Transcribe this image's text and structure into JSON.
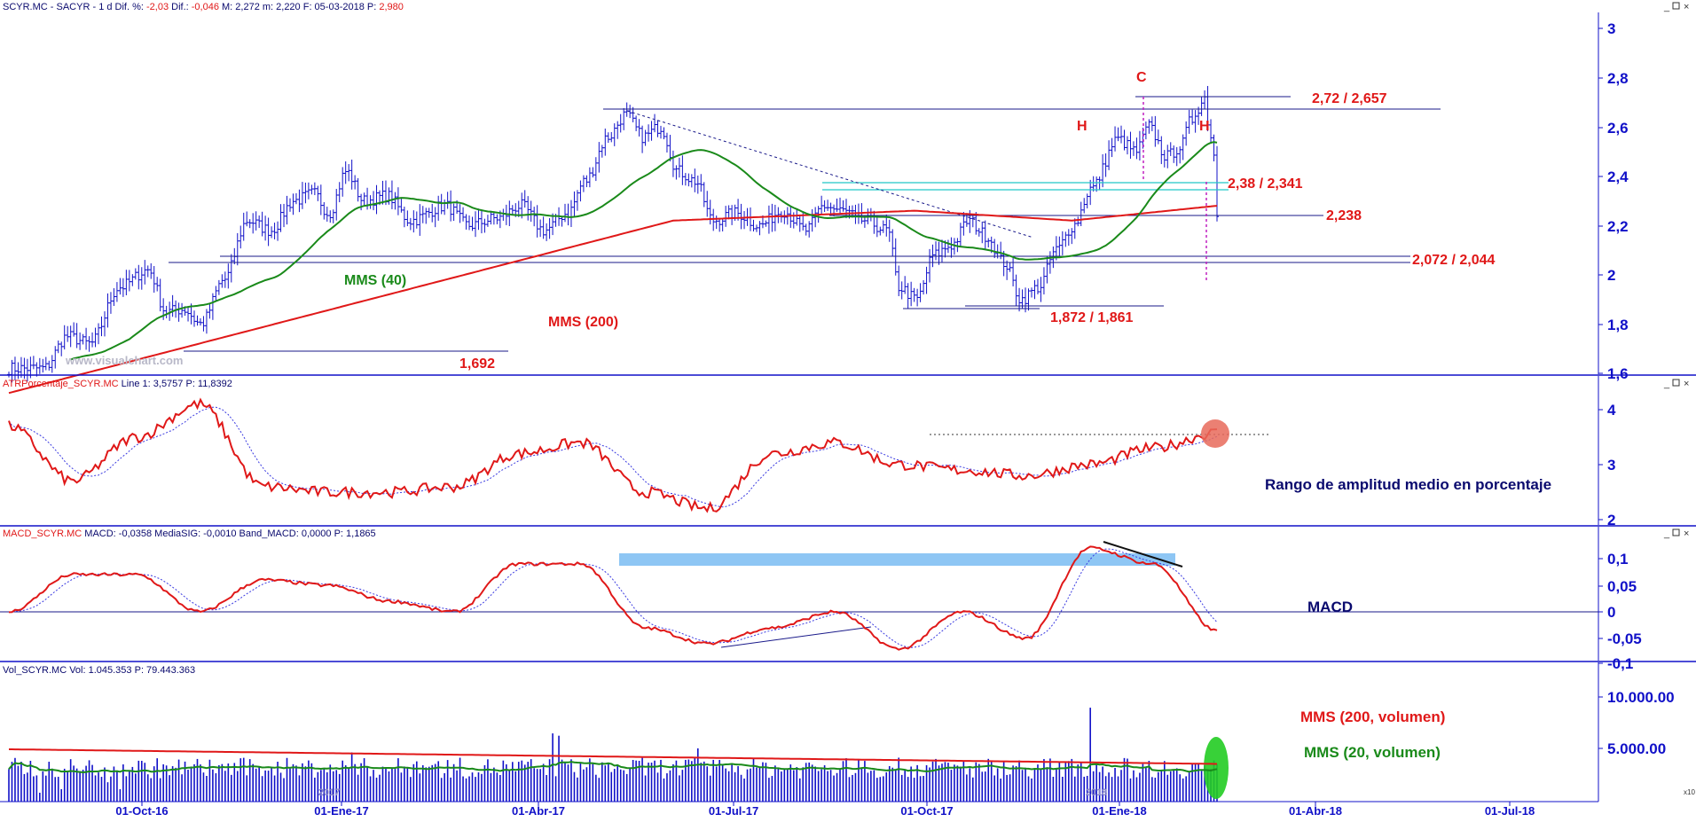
{
  "colors": {
    "price": "#1010c8",
    "mms40": "#1a8a1a",
    "mms200": "#e01818",
    "annotation_red": "#e01818",
    "annotation_green": "#1a8a1a",
    "navy": "#0a0a6e",
    "axis_blue": "#1010c8",
    "cyan": "#20c8c8",
    "macd_band": "#8ec6f4",
    "magenta": "#c020c0",
    "atr_signal": "#3a3ae0",
    "highlight_red": "#e86a5a",
    "highlight_green": "#22cc22",
    "vol_bars": "#1010c8"
  },
  "panes": {
    "price": {
      "title": {
        "ticker": "SCYR.MC - SACYR - ",
        "period": " 1 d ",
        "dif_pct_label": "Dif. %: ",
        "dif_pct_value": "-2,03",
        "dif_label": " Dif.: ",
        "dif_value": "-0,046",
        "max": " M: 2,272",
        "min": " m: 2,220",
        "date": " F: 05-03-2018",
        "p_label": " P: ",
        "p_value": "2,980"
      },
      "y_ticks": [
        "3",
        "2,8",
        "2,6",
        "2,4",
        "2,2",
        "2",
        "1,8",
        "1,6"
      ],
      "annotations": {
        "c": "C",
        "h_left": "H",
        "h_right": "H",
        "level_272": "2,72 / 2,657",
        "level_238": "2,38 / 2,341",
        "level_2238": "2,238",
        "level_2072": "2,072 / 2,044",
        "level_1872": "1,872 / 1,861",
        "level_1692": "1,692",
        "mms40": "MMS (40)",
        "mms200": "MMS (200)",
        "watermark": "www.visualchart.com"
      }
    },
    "atr": {
      "title": {
        "name": "ATRPorcentaje_SCYR.MC",
        "line": " Line 1: 3,5757",
        "p": " P: 11,8392"
      },
      "y_ticks": [
        "4",
        "3",
        "2"
      ],
      "annotation": "Rango de amplitud medio en porcentaje"
    },
    "macd": {
      "title": {
        "name": "MACD_SCYR.MC",
        "macd": " MACD: -0,0358",
        "sig": " MediaSIG: -0,0010",
        "band": " Band_MACD: 0,0000",
        "p": " P: 1,1865"
      },
      "y_ticks": [
        "0,1",
        "0,05",
        "0",
        "-0,05",
        "-0,1"
      ],
      "annotation": "MACD"
    },
    "vol": {
      "title": {
        "name": "Vol_SCYR.MC",
        "vol": " Vol: 1.045.353",
        "p": " P: 79.443.363"
      },
      "y_ticks": [
        "10.000.00",
        "5.000.00"
      ],
      "annotation_200": "MMS (200, volumen)",
      "annotation_20": "MMS (20, volumen)",
      "corner": "x10"
    }
  },
  "x_axis": {
    "labels": [
      "01-Oct-16",
      "01-Ene-17",
      "01-Abr-17",
      "01-Jul-17",
      "01-Oct-17",
      "01-Ene-18",
      "01-Abr-18",
      "01-Jul-18"
    ],
    "overlay_labels": [
      "2017",
      "2018"
    ]
  },
  "chart_data": [
    {
      "type": "ohlc",
      "series_name": "SCYR.MC",
      "x": [
        "2016-08",
        "2016-09",
        "2016-10",
        "2016-11",
        "2016-12",
        "2017-01",
        "2017-02",
        "2017-03",
        "2017-04",
        "2017-05",
        "2017-06",
        "2017-07",
        "2017-08",
        "2017-09",
        "2017-10",
        "2017-11",
        "2017-12",
        "2018-01",
        "2018-02",
        "2018-03"
      ],
      "values": [
        1.62,
        1.72,
        1.95,
        1.86,
        2.22,
        2.33,
        2.27,
        2.23,
        2.35,
        2.62,
        2.35,
        2.24,
        2.22,
        2.2,
        1.98,
        2.1,
        1.96,
        2.5,
        2.55,
        2.25
      ],
      "ylim": [
        1.6,
        3.0
      ],
      "levels": [
        2.72,
        2.657,
        2.38,
        2.341,
        2.238,
        2.072,
        2.044,
        1.872,
        1.861,
        1.692
      ]
    },
    {
      "type": "line",
      "series": [
        {
          "name": "ATRPorcentaje_SCYR.MC",
          "values": [
            3.7,
            2.7,
            3.5,
            4.1,
            2.6,
            2.5,
            2.5,
            2.6,
            3.2,
            3.4,
            2.5,
            2.2,
            3.2,
            3.4,
            3.0,
            2.9,
            2.8,
            3.0,
            3.3,
            3.58
          ]
        }
      ],
      "ylim": [
        1.9,
        4.3
      ]
    },
    {
      "type": "line",
      "series": [
        {
          "name": "MACD_SCYR.MC",
          "values": [
            0.0,
            0.07,
            0.07,
            0.0,
            0.06,
            0.05,
            0.02,
            -0.0,
            0.09,
            0.09,
            -0.03,
            -0.06,
            -0.03,
            0.0,
            -0.07,
            0.0,
            -0.05,
            0.12,
            0.09,
            -0.036
          ]
        }
      ],
      "ylim": [
        -0.1,
        0.12
      ]
    },
    {
      "type": "bar",
      "series": [
        {
          "name": "Vol_SCYR.MC",
          "values": [
            1.2,
            1.6,
            3.2,
            4.0,
            3.6,
            4.8,
            4.2,
            3.5,
            6.8,
            9.8,
            4.5,
            3.2,
            3.4,
            2.6,
            6.8,
            2.8,
            3.3,
            9.1,
            4.1,
            6.3
          ]
        }
      ],
      "unit": "millones",
      "ylim": [
        0,
        12
      ]
    }
  ]
}
